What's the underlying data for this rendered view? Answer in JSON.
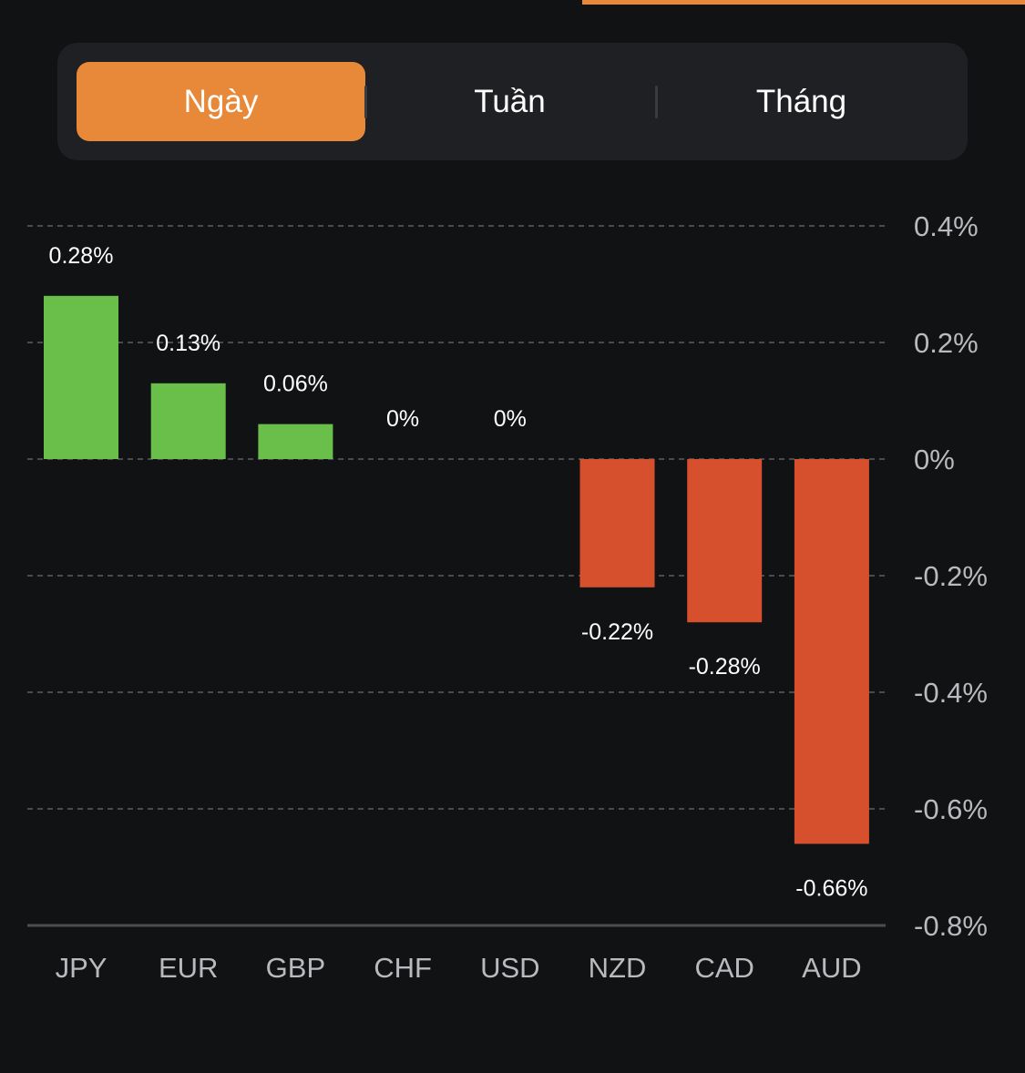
{
  "tabs": [
    {
      "label": "Ngày",
      "active": true
    },
    {
      "label": "Tuần",
      "active": false
    },
    {
      "label": "Tháng",
      "active": false
    }
  ],
  "colors": {
    "accent": "#e8893a",
    "positive": "#6abf4b",
    "negative": "#d6502e",
    "background": "#111214"
  },
  "chart_data": {
    "type": "bar",
    "categories": [
      "JPY",
      "EUR",
      "GBP",
      "CHF",
      "USD",
      "NZD",
      "CAD",
      "AUD"
    ],
    "values": [
      0.28,
      0.13,
      0.06,
      0,
      0,
      -0.22,
      -0.28,
      -0.66
    ],
    "value_labels": [
      "0.28%",
      "0.13%",
      "0.06%",
      "0%",
      "0%",
      "-0.22%",
      "-0.28%",
      "-0.66%"
    ],
    "ylim": [
      -0.8,
      0.4
    ],
    "yticks": [
      0.4,
      0.2,
      0,
      -0.2,
      -0.4,
      -0.6,
      -0.8
    ],
    "ytick_labels": [
      "0.4%",
      "0.2%",
      "0%",
      "-0.2%",
      "-0.4%",
      "-0.6%",
      "-0.8%"
    ],
    "y_axis_position": "right",
    "grid": true,
    "title": "",
    "xlabel": "",
    "ylabel": ""
  }
}
